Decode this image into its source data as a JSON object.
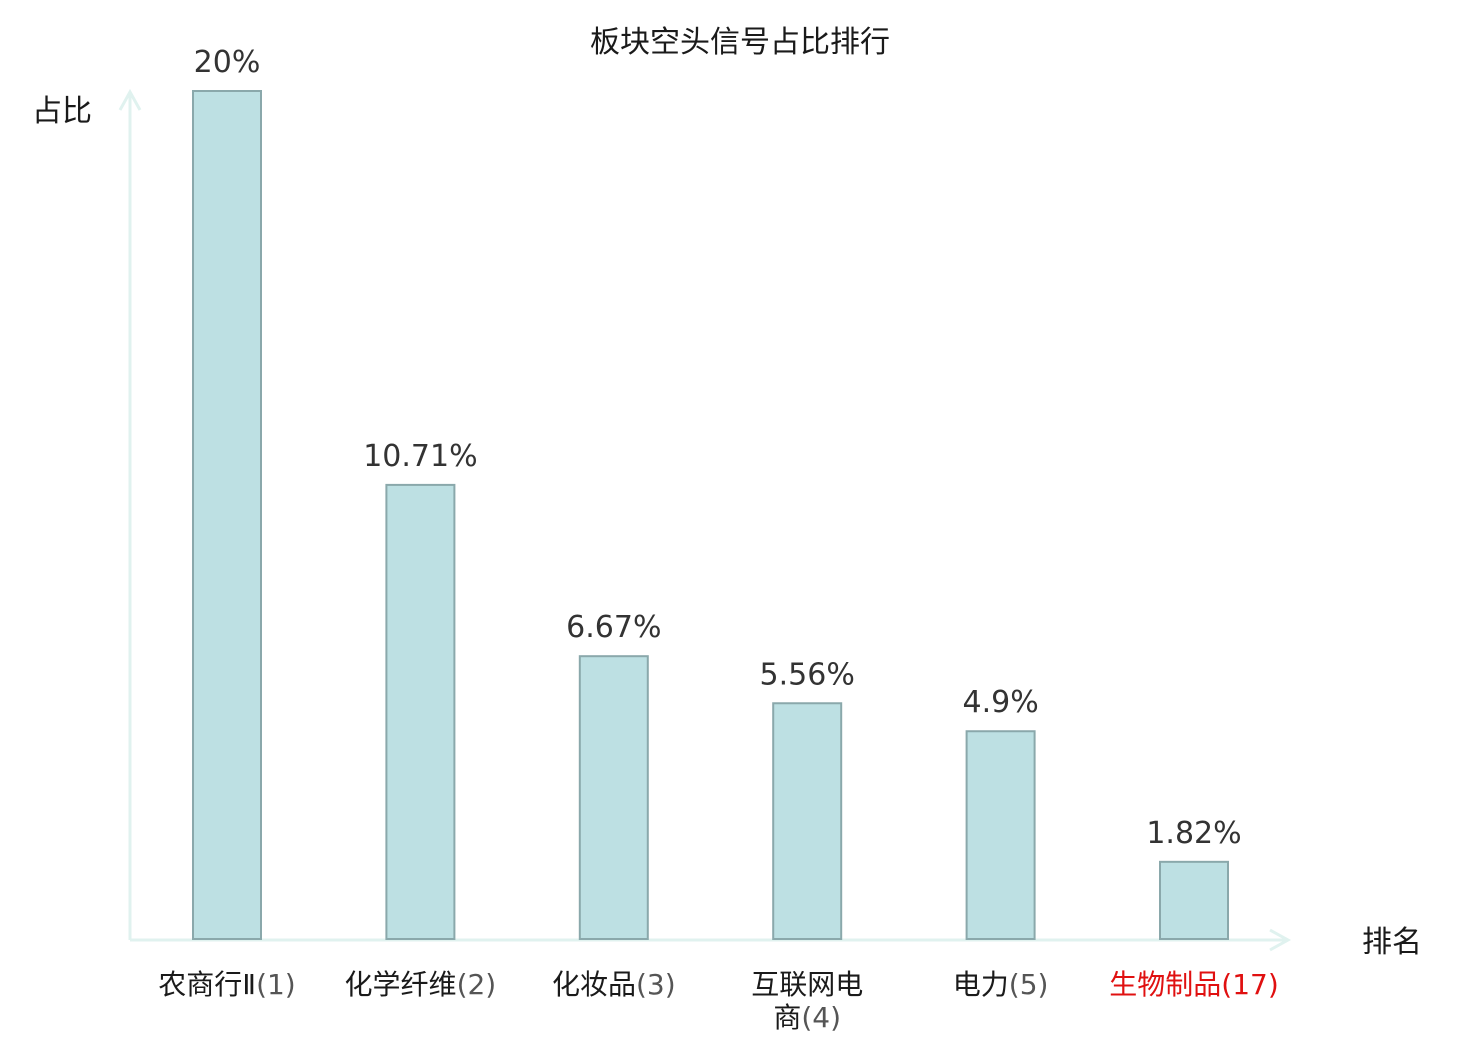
{
  "chart_data": {
    "type": "bar",
    "title": "板块空头信号占比排行",
    "ylabel": "占比",
    "xlabel": "排名",
    "ylim": [
      0,
      20
    ],
    "grid": false,
    "legend": "none",
    "categories": [
      {
        "name": "农商行Ⅱ",
        "rank": "(1)"
      },
      {
        "name": "化学纤维",
        "rank": "(2)"
      },
      {
        "name": "化妆品",
        "rank": "(3)"
      },
      {
        "name": "互联网电商",
        "rank": "(4)"
      },
      {
        "name": "电力",
        "rank": "(5)"
      },
      {
        "name": "生物制品",
        "rank": "(17)",
        "highlight": true
      }
    ],
    "values": [
      20,
      10.71,
      6.67,
      5.56,
      4.9,
      1.82
    ],
    "value_labels": [
      "20%",
      "10.71%",
      "6.67%",
      "5.56%",
      "4.9%",
      "1.82%"
    ],
    "colors": {
      "bar_fill": "#bde0e3",
      "bar_stroke": "#8aa8ab",
      "axis": "#e0f2ef",
      "category_text": "#1a1a1a",
      "rank_text": "#555555",
      "highlight_text": "#e01010"
    }
  }
}
